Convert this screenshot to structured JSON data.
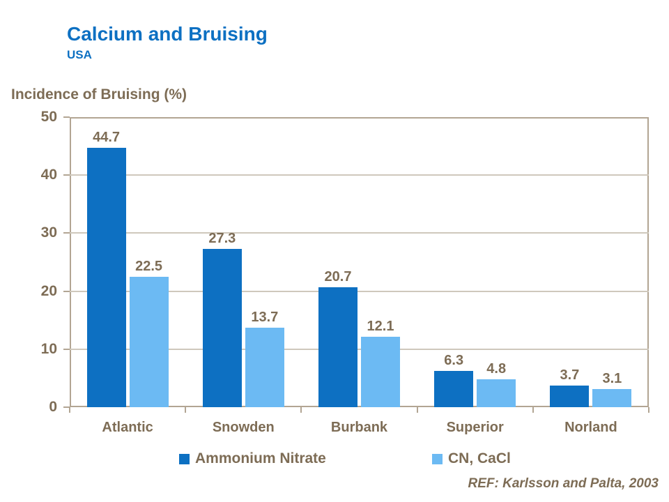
{
  "title": "Calcium and Bruising",
  "subtitle": "USA",
  "axis_title": "Incidence of Bruising (%)",
  "ref_note": "REF: Karlsson and Palta, 2003",
  "colors": {
    "title_blue": "#0d70c2",
    "text_brown": "#7d6c55",
    "axis_line": "#b2a593",
    "gridline": "#cfc8bc",
    "background": "#ffffff",
    "series1": "#0d70c2",
    "series2": "#6cbaf3"
  },
  "legend": {
    "items": [
      {
        "label": "Ammonium Nitrate",
        "color": "#0d70c2"
      },
      {
        "label": "CN, CaCl",
        "color": "#6cbaf3"
      }
    ]
  },
  "chart_data": {
    "type": "bar",
    "title": "Calcium and Bruising",
    "subtitle": "USA",
    "xlabel": "",
    "ylabel": "Incidence of Bruising (%)",
    "categories": [
      "Atlantic",
      "Snowden",
      "Burbank",
      "Superior",
      "Norland"
    ],
    "series": [
      {
        "name": "Ammonium Nitrate",
        "color": "#0d70c2",
        "values": [
          44.7,
          27.3,
          20.7,
          6.3,
          3.7
        ]
      },
      {
        "name": "CN, CaCl",
        "color": "#6cbaf3",
        "values": [
          22.5,
          13.7,
          12.1,
          4.8,
          3.1
        ]
      }
    ],
    "ylim": [
      0,
      50
    ],
    "yticks": [
      0,
      10,
      20,
      30,
      40,
      50
    ],
    "grid": true,
    "data_labels": true,
    "legend_position": "bottom",
    "annotation": "REF: Karlsson and Palta, 2003"
  }
}
